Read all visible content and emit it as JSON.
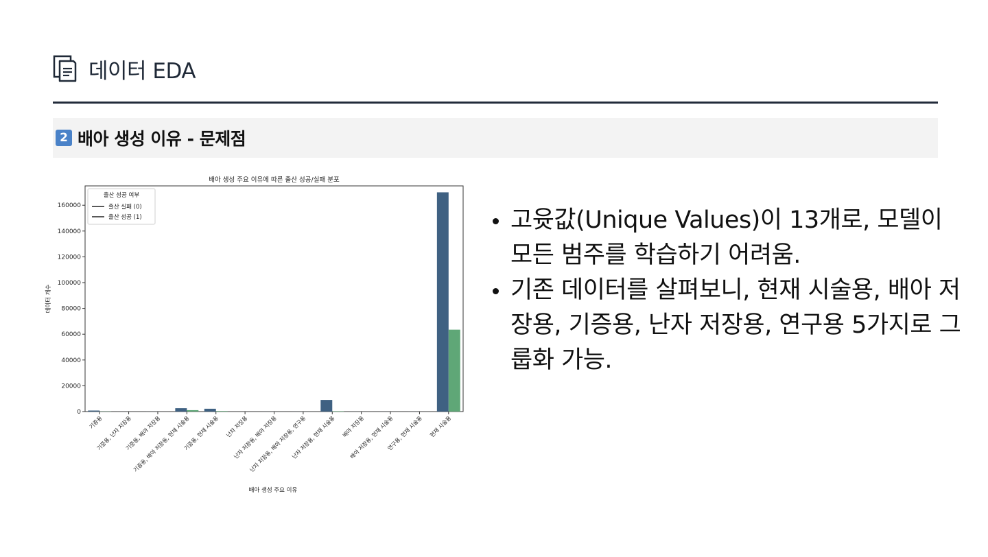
{
  "header": {
    "title": "데이터 EDA",
    "icon": "document-icon"
  },
  "section": {
    "number": "2",
    "title": "배아 생성 이유 - 문제점"
  },
  "bullets": [
    "고윳값(Unique Values)이 13개로, 모델이 모든 범주를 학습하기 어려움.",
    "기존 데이터를 살펴보니, 현재 시술용, 배아 저장용, 기증용, 난자 저장용, 연구용 5가지로 그룹화 가능."
  ],
  "colors": {
    "fail": "#3f6182",
    "success": "#5fa777",
    "badge": "#4a82c8"
  },
  "chart_data": {
    "type": "bar",
    "title": "배아 생성 주요 이유에 따른 출산 성공/실패 분포",
    "xlabel": "배아 생성 주요 이유",
    "ylabel": "데이터 개수",
    "ylim": [
      0,
      175000
    ],
    "yticks": [
      0,
      20000,
      40000,
      60000,
      80000,
      100000,
      120000,
      140000,
      160000
    ],
    "categories": [
      "기증용",
      "기증용, 난자 저장용",
      "기증용, 배아 저장용",
      "기증용, 배아 저장용, 현재 시술용",
      "기증용, 현재 시술용",
      "난자 저장용",
      "난자 저장용, 배아 저장용",
      "난자 저장용, 배아 저장용, 연구용",
      "난자 저장용, 현재 시술용",
      "배아 저장용",
      "배아 저장용, 현재 시술용",
      "연구용, 현재 시술용",
      "현재 시술용"
    ],
    "legend": {
      "title": "출산 성공 여부",
      "position": "top-left"
    },
    "series": [
      {
        "name": "출산 실패 (0)",
        "values": [
          800,
          30,
          40,
          2600,
          2200,
          0,
          20,
          20,
          9000,
          40,
          20,
          40,
          170000
        ]
      },
      {
        "name": "출산 성공 (1)",
        "values": [
          150,
          10,
          10,
          1100,
          400,
          0,
          5,
          5,
          300,
          10,
          5,
          10,
          63500
        ]
      }
    ]
  }
}
